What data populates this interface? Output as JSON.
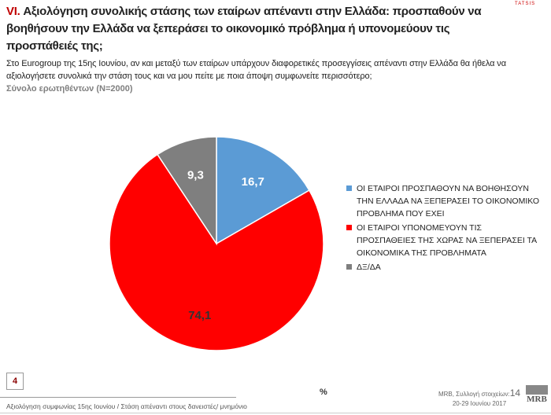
{
  "header": {
    "title_num": "VI.",
    "title": "Αξιολόγηση συνολικής στάσης των εταίρων απέναντι στην Ελλάδα: προσπαθούν να βοηθήσουν την Ελλάδα να ξεπεράσει το οικονομικό πρόβλημα ή υπονομεύουν τις προσπάθειές της;",
    "question": "Στο Eurogroup της 15ης Ιουνίου, αν και μεταξύ των εταίρων υπάρχουν διαφορετικές προσεγγίσεις απέναντι στην Ελλάδα θα ήθελα να αξιολογήσετε συνολικά την στάση τους και να μου πείτε με ποια άποψη συμφωνείτε περισσότερο;",
    "base": "Σύνολο ερωτηθέντων (N=2000)",
    "brand": "TATSIS"
  },
  "chart_data": {
    "type": "pie",
    "unit": "%",
    "start": "top",
    "direction": "clockwise",
    "series": [
      {
        "name": "ΟΙ ΕΤΑΙΡΟΙ ΠΡΟΣΠΑΘΟΥΝ ΝΑ ΒΟΗΘΗΣΟΥΝ ΤΗΝ ΕΛΛΑΔΑ ΝΑ ΞΕΠΕΡΑΣΕΙ ΤΟ ΟΙΚΟΝΟΜΙΚΟ ΠΡΟΒΛΗΜΑ ΠΟΥ ΕΧΕΙ",
        "value": 16.7,
        "label": "16,7",
        "color": "#5b9bd5"
      },
      {
        "name": "ΟΙ ΕΤΑΙΡΟΙ ΥΠΟΝΟΜΕΥΟΥΝ ΤΙΣ ΠΡΟΣΠΑΘΕΙΕΣ ΤΗΣ ΧΩΡΑΣ ΝΑ ΞΕΠΕΡΑΣΕΙ ΤΑ ΟΙΚΟΝΟΜΙΚΑ ΤΗΣ ΠΡΟΒΛΗΜΑΤΑ",
        "value": 74.1,
        "label": "74,1",
        "color": "#ff0000"
      },
      {
        "name": "ΔΞ/ΔΑ",
        "value": 9.3,
        "label": "9,3",
        "color": "#7f7f7f"
      }
    ],
    "legend": "right"
  },
  "footer": {
    "page": "4",
    "text": "Αξιολόγηση συμφωνίας 15ης Ιουνίου / Στάση απέναντι στους δανειστές/ μνημόνιο",
    "pct": "%",
    "source": "MRB, Συλλογή στοιχείων:",
    "source_num": "14",
    "dates": "20-29 Ιουνίου 2017",
    "logo": "MRB"
  }
}
